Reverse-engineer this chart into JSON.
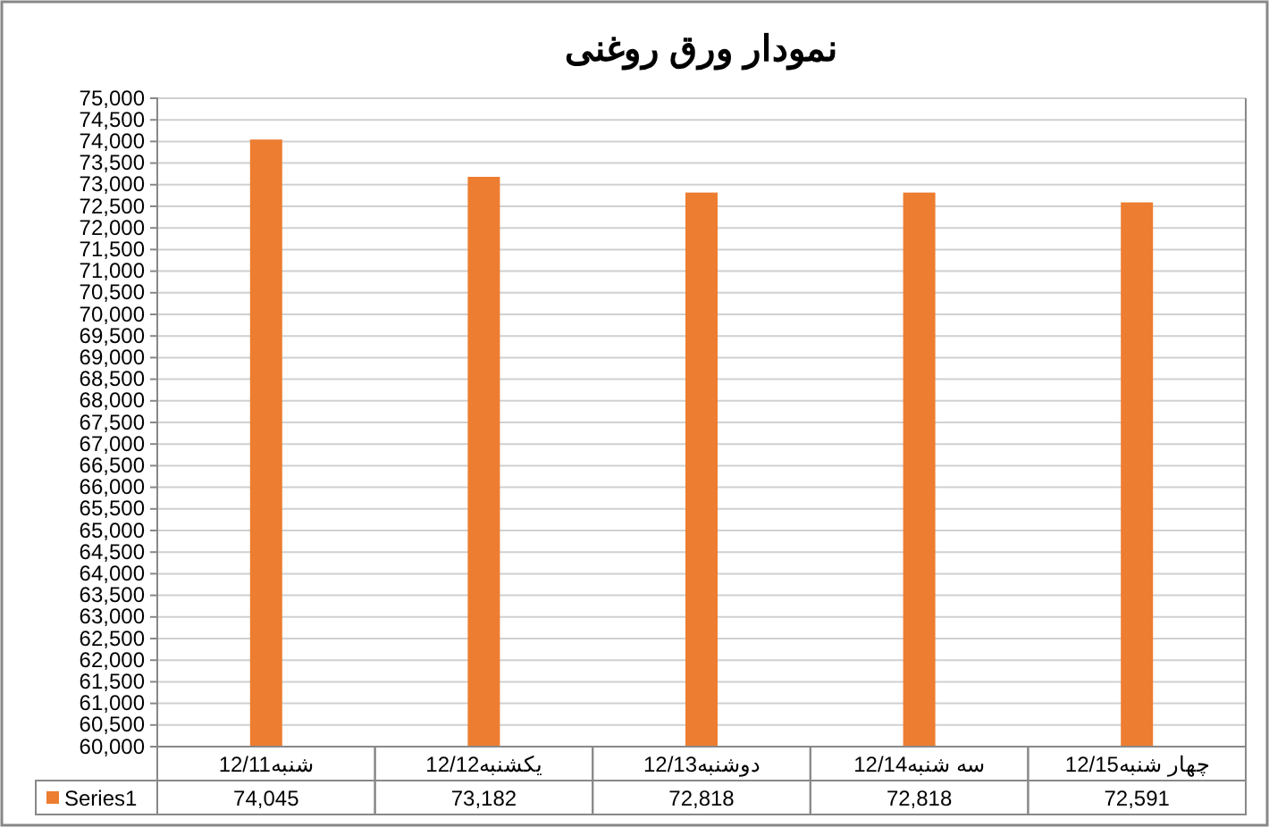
{
  "chart_data": {
    "type": "bar",
    "title": "نمودار ورق روغنی",
    "categories": [
      "شنبه12/11",
      "یکشنبه12/12",
      "دوشنبه12/13",
      "سه شنبه12/14",
      "چهار شنبه12/15"
    ],
    "series": [
      {
        "name": "Series1",
        "color": "#ed7d31",
        "values": [
          74045,
          73182,
          72818,
          72818,
          72591
        ],
        "value_labels": [
          "74,045",
          "73,182",
          "72,818",
          "72,818",
          "72,591"
        ]
      }
    ],
    "ylim": [
      60000,
      75000
    ],
    "yticks": [
      {
        "value": 60000,
        "label": "60,000"
      },
      {
        "value": 60500,
        "label": "60,500"
      },
      {
        "value": 61000,
        "label": "61,000"
      },
      {
        "value": 61500,
        "label": "61,500"
      },
      {
        "value": 62000,
        "label": "62,000"
      },
      {
        "value": 62500,
        "label": "62,500"
      },
      {
        "value": 63000,
        "label": "63,000"
      },
      {
        "value": 63500,
        "label": "63,500"
      },
      {
        "value": 64000,
        "label": "64,000"
      },
      {
        "value": 64500,
        "label": "64,500"
      },
      {
        "value": 65000,
        "label": "65,000"
      },
      {
        "value": 65500,
        "label": "65,500"
      },
      {
        "value": 66000,
        "label": "66,000"
      },
      {
        "value": 66500,
        "label": "66,500"
      },
      {
        "value": 67000,
        "label": "67,000"
      },
      {
        "value": 67500,
        "label": "67,500"
      },
      {
        "value": 68000,
        "label": "68,000"
      },
      {
        "value": 68500,
        "label": "68,500"
      },
      {
        "value": 69000,
        "label": "69,000"
      },
      {
        "value": 69500,
        "label": "69,500"
      },
      {
        "value": 70000,
        "label": "70,000"
      },
      {
        "value": 70500,
        "label": "70,500"
      },
      {
        "value": 71000,
        "label": "71,000"
      },
      {
        "value": 71500,
        "label": "71,500"
      },
      {
        "value": 72000,
        "label": "72,000"
      },
      {
        "value": 72500,
        "label": "72,500"
      },
      {
        "value": 73000,
        "label": "73,000"
      },
      {
        "value": 73500,
        "label": "73,500"
      },
      {
        "value": 74000,
        "label": "74,000"
      },
      {
        "value": 74500,
        "label": "74,500"
      },
      {
        "value": 75000,
        "label": "75,000"
      }
    ],
    "grid": "y",
    "legend": "bottom"
  }
}
